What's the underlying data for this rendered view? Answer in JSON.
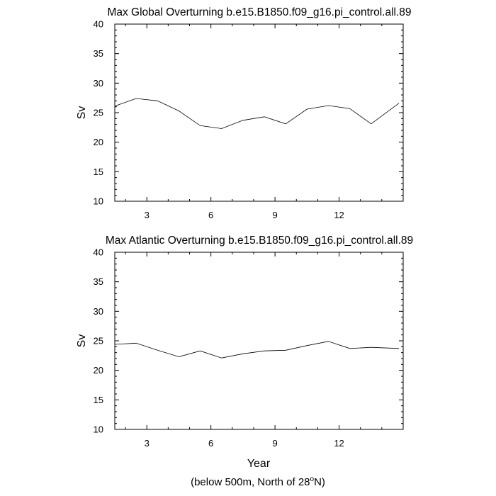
{
  "chart_data": [
    {
      "type": "line",
      "title": "Max Global Overturning b.e15.B1850.f09_g16.pi_control.all.89",
      "xlabel": "",
      "ylabel": "Sv",
      "xlim": [
        1.5,
        15
      ],
      "ylim": [
        10,
        40
      ],
      "xticks": [
        3,
        6,
        9,
        12
      ],
      "yticks": [
        10,
        15,
        20,
        25,
        30,
        35,
        40
      ],
      "x": [
        1.5,
        2.5,
        3.5,
        4.5,
        5.5,
        6.5,
        7.5,
        8.5,
        9.5,
        10.5,
        11.5,
        12.5,
        13.5,
        14.8
      ],
      "series": [
        {
          "name": "Global",
          "values": [
            26.1,
            27.4,
            27.0,
            25.3,
            22.8,
            22.3,
            23.7,
            24.3,
            23.1,
            25.6,
            26.2,
            25.7,
            23.1,
            26.6
          ]
        }
      ]
    },
    {
      "type": "line",
      "title": "Max Atlantic Overturning b.e15.B1850.f09_g16.pi_control.all.89",
      "xlabel": "Year",
      "ylabel": "Sv",
      "xlim": [
        1.5,
        15
      ],
      "ylim": [
        10,
        40
      ],
      "xticks": [
        3,
        6,
        9,
        12
      ],
      "yticks": [
        10,
        15,
        20,
        25,
        30,
        35,
        40
      ],
      "x": [
        1.5,
        2.5,
        3.5,
        4.5,
        5.5,
        6.5,
        7.5,
        8.5,
        9.5,
        10.5,
        11.5,
        12.5,
        13.5,
        14.8
      ],
      "series": [
        {
          "name": "Atlantic",
          "values": [
            24.4,
            24.6,
            23.4,
            22.3,
            23.3,
            22.1,
            22.8,
            23.3,
            23.4,
            24.2,
            24.9,
            23.7,
            23.9,
            23.7
          ]
        }
      ]
    }
  ],
  "footer": {
    "text_before": "(below 500m, North of 28",
    "degree": "o",
    "text_after": "N)"
  }
}
